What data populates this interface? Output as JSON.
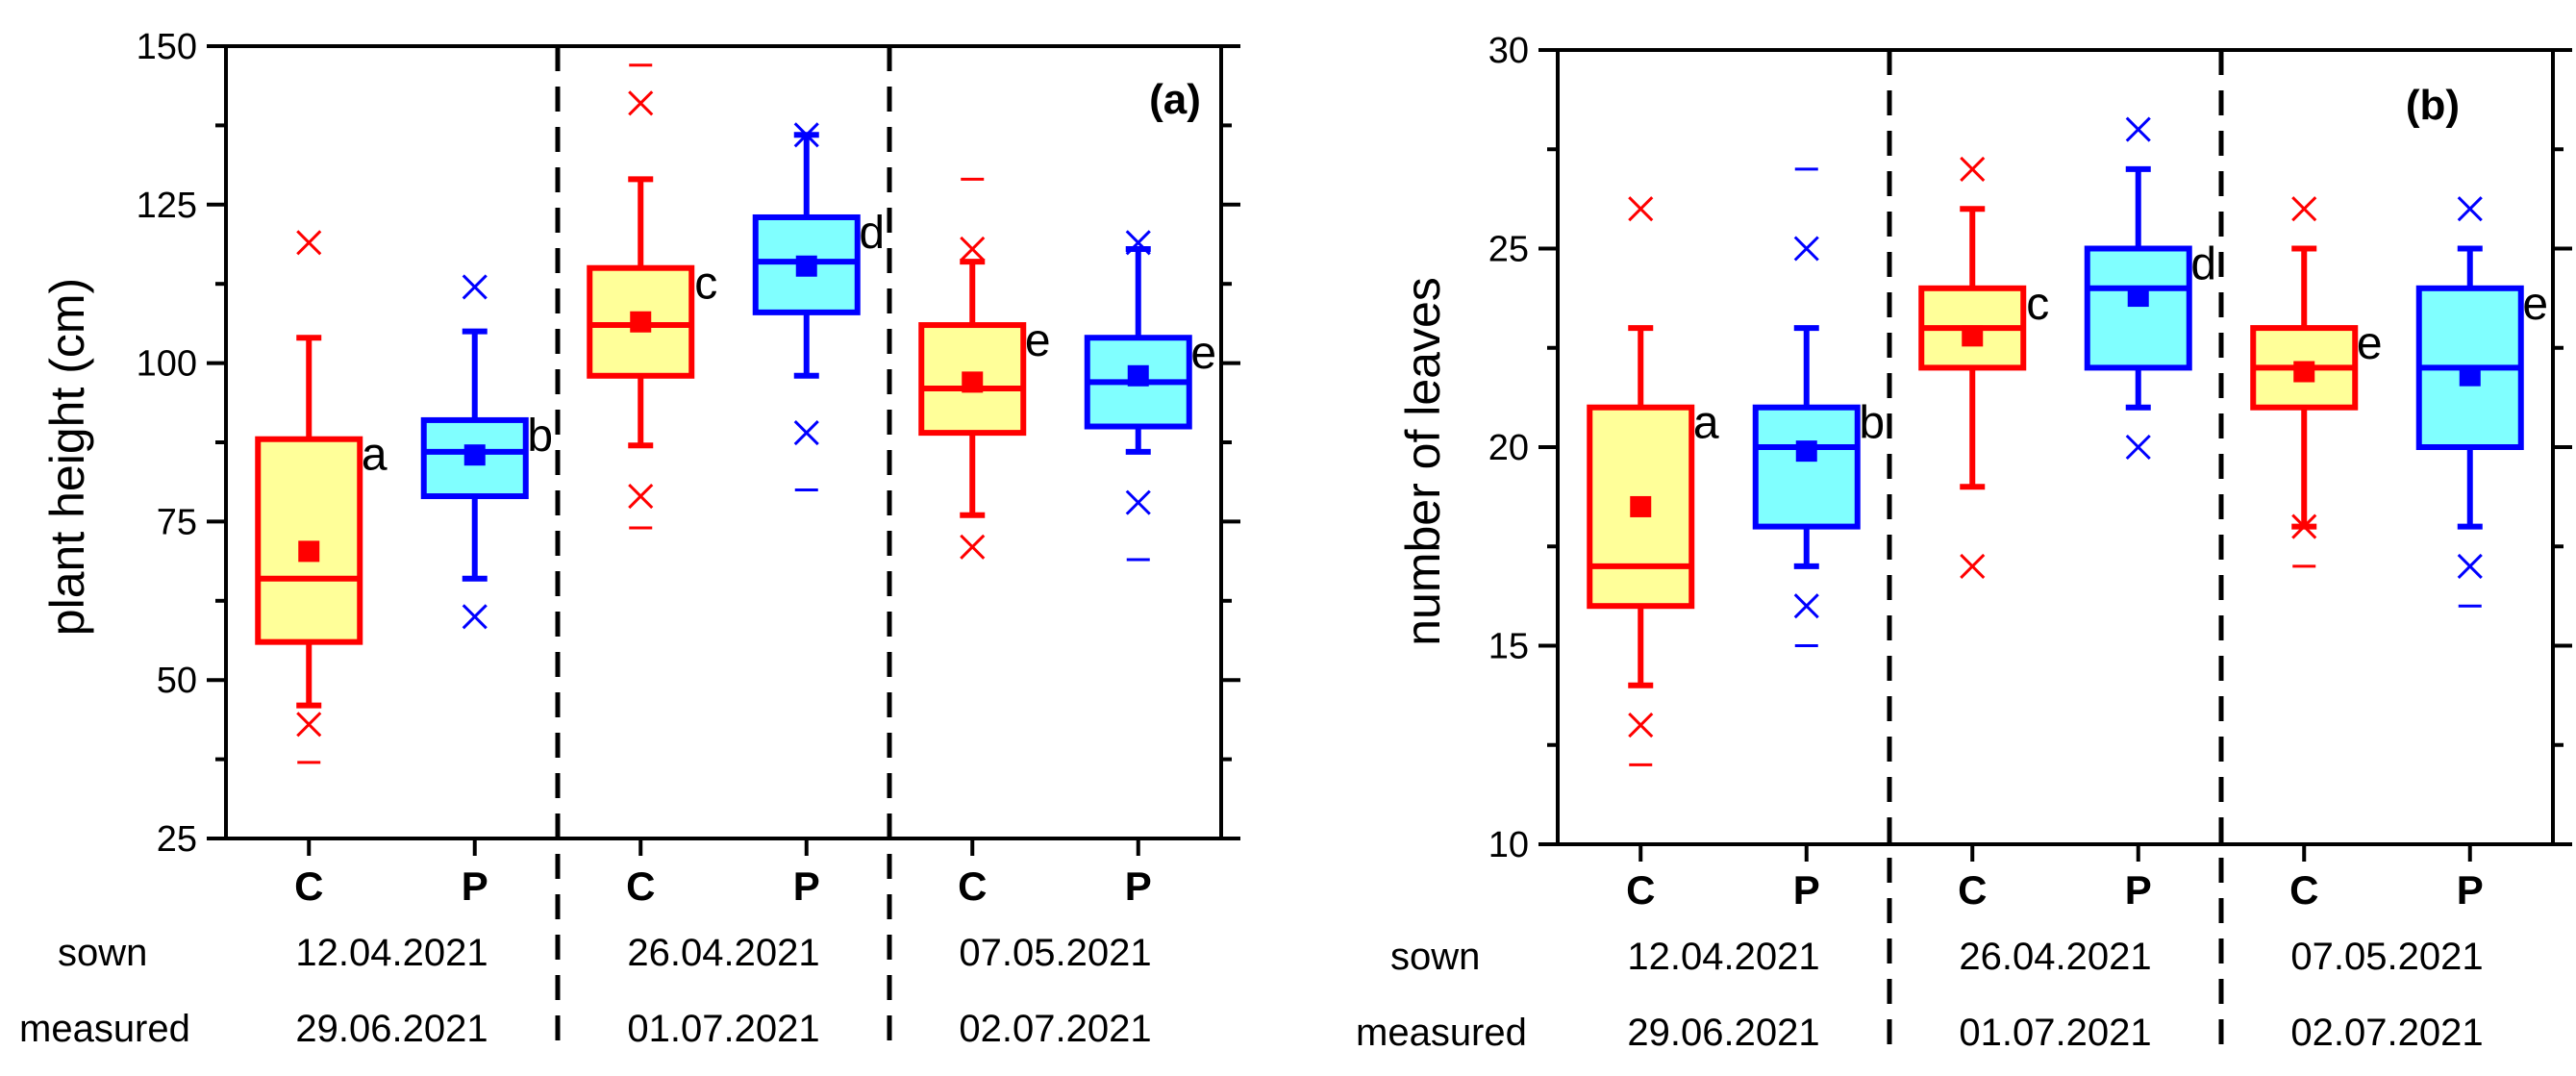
{
  "colors": {
    "control_fill": "#ffff99",
    "control_line": "#ff0000",
    "treated_fill": "#80ffff",
    "treated_line": "#0000ff",
    "axis": "#000000"
  },
  "chart_data": [
    {
      "type": "boxplot",
      "panel_label": "(a)",
      "ylabel": "plant height (cm)",
      "xlabel": "",
      "ylim": [
        25,
        150
      ],
      "yticks": [
        25,
        50,
        75,
        100,
        125,
        150
      ],
      "row_labels": {
        "sown": "sown",
        "measured": "measured"
      },
      "groups": [
        {
          "sown": "12.04.2021",
          "measured": "29.06.2021"
        },
        {
          "sown": "26.04.2021",
          "measured": "01.07.2021"
        },
        {
          "sown": "07.05.2021",
          "measured": "02.07.2021"
        }
      ],
      "boxes": [
        {
          "category": "C",
          "kind": "control",
          "letter": "a",
          "q1": 56,
          "median": 66,
          "q3": 88,
          "mean": 70.3,
          "whisker_low": 46,
          "whisker_high": 104,
          "p1": 43,
          "p99": 119,
          "min": 37,
          "max": null
        },
        {
          "category": "P",
          "kind": "treated",
          "letter": "b",
          "q1": 79,
          "median": 86,
          "q3": 91,
          "mean": 85.5,
          "whisker_low": 66,
          "whisker_high": 105,
          "p1": 60,
          "p99": 112,
          "min": null,
          "max": null
        },
        {
          "category": "C",
          "kind": "control",
          "letter": "c",
          "q1": 98,
          "median": 106,
          "q3": 115,
          "mean": 106.5,
          "whisker_low": 87,
          "whisker_high": 129,
          "p1": 79,
          "p99": 141,
          "min": 74,
          "max": 147
        },
        {
          "category": "P",
          "kind": "treated",
          "letter": "d",
          "q1": 108,
          "median": 116,
          "q3": 123,
          "mean": 115.3,
          "whisker_low": 98,
          "whisker_high": 136,
          "p1": 89,
          "p99": 136,
          "min": 80,
          "max": null
        },
        {
          "category": "C",
          "kind": "control",
          "letter": "e",
          "q1": 89,
          "median": 96,
          "q3": 106,
          "mean": 97,
          "whisker_low": 76,
          "whisker_high": 116,
          "p1": 71,
          "p99": 118,
          "min": null,
          "max": 129
        },
        {
          "category": "P",
          "kind": "treated",
          "letter": "e",
          "q1": 90,
          "median": 97,
          "q3": 104,
          "mean": 98,
          "whisker_low": 86,
          "whisker_high": 118,
          "p1": 78,
          "p99": 119,
          "min": 69,
          "max": null
        }
      ]
    },
    {
      "type": "boxplot",
      "panel_label": "(b)",
      "ylabel": "number of leaves",
      "xlabel": "",
      "ylim": [
        10,
        30
      ],
      "yticks": [
        10,
        15,
        20,
        25,
        30
      ],
      "row_labels": {
        "sown": "sown",
        "measured": "measured"
      },
      "groups": [
        {
          "sown": "12.04.2021",
          "measured": "29.06.2021"
        },
        {
          "sown": "26.04.2021",
          "measured": "01.07.2021"
        },
        {
          "sown": "07.05.2021",
          "measured": "02.07.2021"
        }
      ],
      "boxes": [
        {
          "category": "C",
          "kind": "control",
          "letter": "a",
          "q1": 16,
          "median": 17,
          "q3": 21,
          "mean": 18.5,
          "whisker_low": 14,
          "whisker_high": 23,
          "p1": 13,
          "p99": 26,
          "min": 12,
          "max": null
        },
        {
          "category": "P",
          "kind": "treated",
          "letter": "b",
          "q1": 18,
          "median": 20,
          "q3": 21,
          "mean": 19.9,
          "whisker_low": 17,
          "whisker_high": 23,
          "p1": 16,
          "p99": 25,
          "min": 15,
          "max": 27
        },
        {
          "category": "C",
          "kind": "control",
          "letter": "c",
          "q1": 22,
          "median": 23,
          "q3": 24,
          "mean": 22.8,
          "whisker_low": 19,
          "whisker_high": 26,
          "p1": 17,
          "p99": 27,
          "min": null,
          "max": null
        },
        {
          "category": "P",
          "kind": "treated",
          "letter": "d",
          "q1": 22,
          "median": 24,
          "q3": 25,
          "mean": 23.8,
          "whisker_low": 21,
          "whisker_high": 27,
          "p1": 20,
          "p99": 28,
          "min": null,
          "max": null
        },
        {
          "category": "C",
          "kind": "control",
          "letter": "e",
          "q1": 21,
          "median": 22,
          "q3": 23,
          "mean": 21.9,
          "whisker_low": 18,
          "whisker_high": 25,
          "p1": 18,
          "p99": 26,
          "min": 17,
          "max": null
        },
        {
          "category": "P",
          "kind": "treated",
          "letter": "e",
          "q1": 20,
          "median": 22,
          "q3": 24,
          "mean": 21.8,
          "whisker_low": 18,
          "whisker_high": 25,
          "p1": 17,
          "p99": 26,
          "min": 16,
          "max": null
        }
      ]
    }
  ]
}
